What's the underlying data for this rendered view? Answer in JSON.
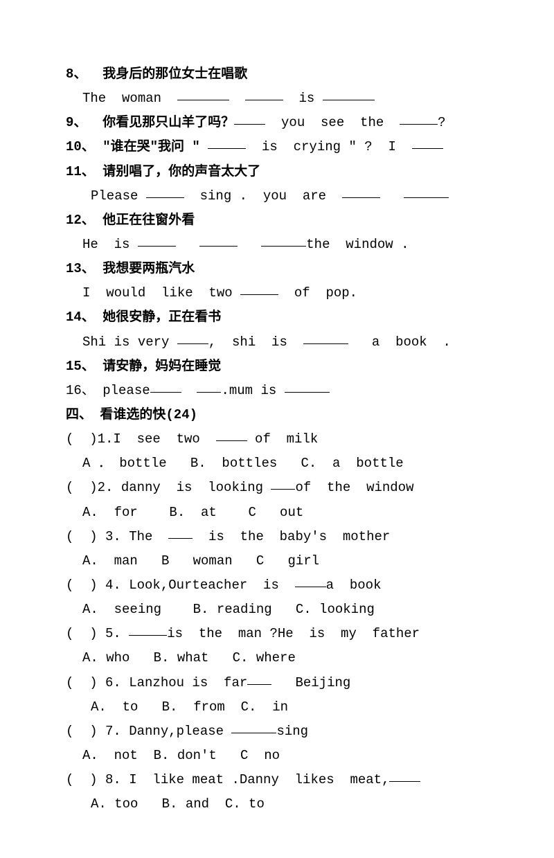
{
  "q8_head": "8、  我身后的那位女士在唱歌",
  "q8_t1": "The  woman  ",
  "q8_t2": "  ",
  "q8_t3": "  is ",
  "q9_head": "9、  你看见那只山羊了吗？",
  "q9_t2": "  you  see  the  ",
  "q9_t3": "?",
  "q10_head": "10、 \"谁在哭\"我问 \" ",
  "q10_t2": "  is  crying \" ?  I  ",
  "q11_head": "11、 请别唱了，你的声音太大了",
  "q11_t1": "Please ",
  "q11_t2": "  sing .  you  are  ",
  "q11_t3": "   ",
  "q12_head": "12、 他正在往窗外看",
  "q12_t1": "He  is ",
  "q12_t2": "   ",
  "q12_t3": "   ",
  "q12_t4": "the  window .",
  "q13_head": "13、 我想要两瓶汽水",
  "q13_t1": "I  would  like  two ",
  "q13_t2": "  of  pop.",
  "q14_head": "14、 她很安静，正在看书",
  "q14_t1": "Shi is very ",
  "q14_t2": ",  shi  is  ",
  "q14_t3": "   a  book  .",
  "q15_head": "15、 请安静，妈妈在睡觉",
  "q16_t1": "16、 please",
  "q16_t2": "  ",
  "q16_t3": ".mum is ",
  "sec4_head": "四、 看谁选的快(24)",
  "c1_q": "(  )1.I  see  two  ",
  "c1_q2": " of  milk",
  "c1_opts": "A ． bottle   B.  bottles   C.  a  bottle",
  "c2_q": "(  )2. danny  is  looking ",
  "c2_q2": "of  the  window",
  "c2_opts": "A.  for    B.  at    C   out",
  "c3_q": "(  ) 3. The  ",
  "c3_q2": "  is  the  baby's  mother",
  "c3_opts": "A.  man   B   woman   C   girl",
  "c4_q": "(  ) 4. Look,Ourteacher  is  ",
  "c4_q2": "a  book",
  "c4_opts": "A.  seeing    B. reading   C. looking",
  "c5_q": "(  ) 5. ",
  "c5_q2": "is  the  man ?He  is  my  father",
  "c5_opts": "A. who   B. what   C. where",
  "c6_q": "(  ) 6. Lanzhou is  far",
  "c6_q2": "   Beijing",
  "c6_opts": "A.  to   B.  from  C.  in",
  "c7_q": "(  ) 7. Danny,please ",
  "c7_q2": "sing",
  "c7_opts": "A.  not  B. don't   C  no",
  "c8_q": "(  ) 8. I  like meat .Danny  likes  meat,",
  "c8_opts": "A. too   B. and  C. to"
}
